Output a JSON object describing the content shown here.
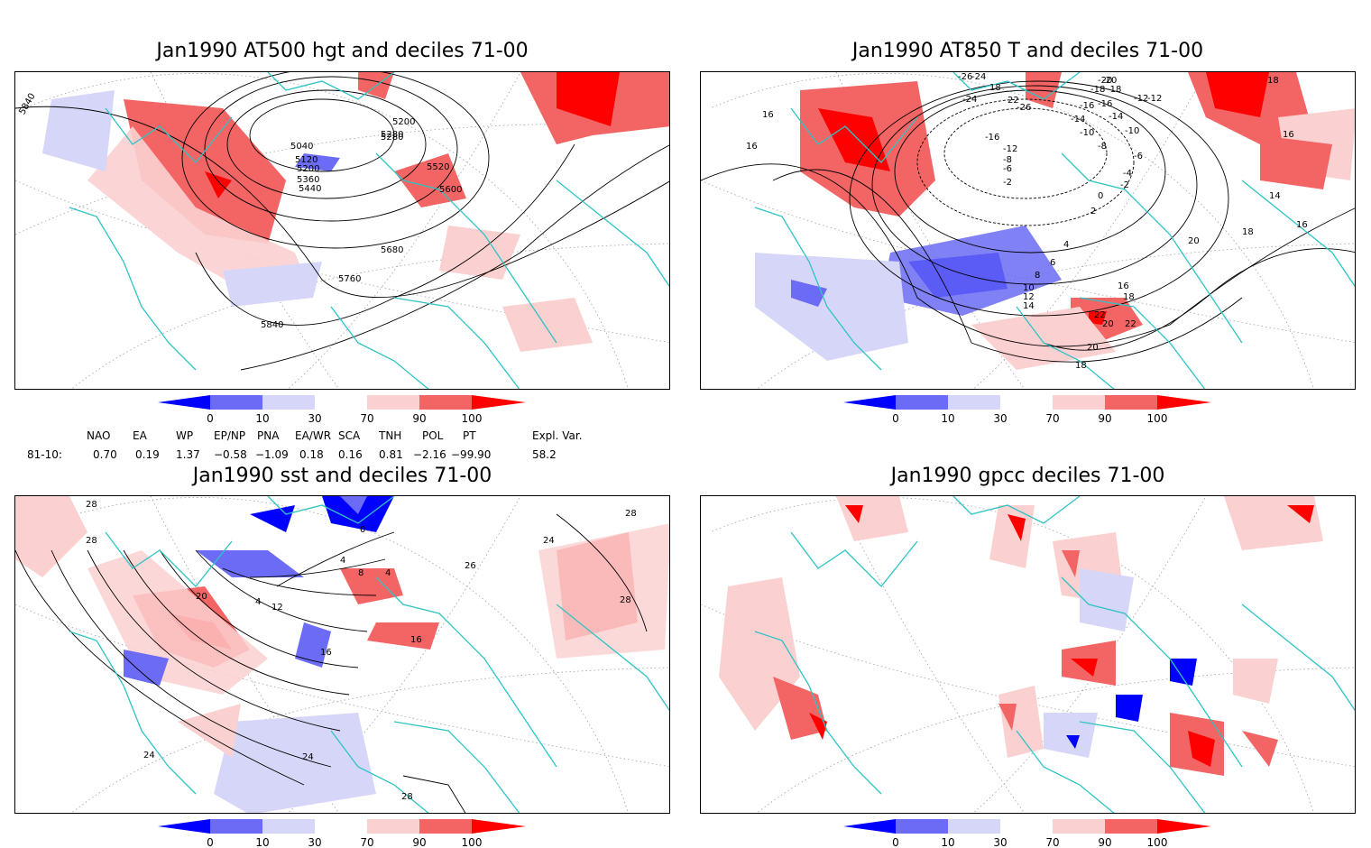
{
  "panels": [
    {
      "title": "Jan1990 AT500 hgt and deciles 71-00",
      "contour_labels": [
        "5040",
        "5120",
        "5200",
        "5280",
        "5360",
        "5440",
        "5520",
        "5600",
        "5680",
        "5760",
        "5840",
        "5200",
        "5280",
        "5840"
      ]
    },
    {
      "title": "Jan1990 AT850 T and deciles 71-00",
      "contour_labels": [
        "-26",
        "-24",
        "-20",
        "-18",
        "-16",
        "-14",
        "-12",
        "-10",
        "-8",
        "-6",
        "-4",
        "-2",
        "0",
        "2",
        "4",
        "6",
        "8",
        "10",
        "12",
        "14",
        "16",
        "18",
        "20",
        "22",
        "16",
        "16",
        "18",
        "14",
        "16",
        "18",
        "20",
        "18",
        "20",
        "22",
        "16",
        "18",
        "22",
        "-16",
        "-12",
        "-6",
        "-2",
        "-8",
        "-10",
        "-12",
        "-14",
        "-16",
        "-18",
        "-20",
        "-24",
        "-26"
      ]
    },
    {
      "title": "Jan1990 sst and deciles 71-00",
      "contour_labels": [
        "28",
        "28",
        "24",
        "20",
        "16",
        "12",
        "4",
        "8",
        "4",
        "4",
        "0",
        "16",
        "24",
        "28",
        "28",
        "24",
        "28",
        "26"
      ]
    },
    {
      "title": "Jan1990 gpcc deciles 71-00",
      "contour_labels": []
    }
  ],
  "colorbar": {
    "ticks": [
      "0",
      "10",
      "30",
      "70",
      "90",
      "100"
    ],
    "colors": [
      "#0000ff",
      "#6b6bf5",
      "#d6d6f8",
      "#ffffff",
      "#fbd0d0",
      "#f36464",
      "#ff0000"
    ]
  },
  "indices": {
    "row_label": "81-10:",
    "headers": [
      "NAO",
      "EA",
      "WP",
      "EP/NP",
      "PNA",
      "EA/WR",
      "SCA",
      "TNH",
      "POL",
      "PT",
      "Expl. Var."
    ],
    "values": [
      "0.70",
      "0.19",
      "1.37",
      "−0.58",
      "−1.09",
      "0.18",
      "0.16",
      "0.81",
      "−2.16",
      "−99.90",
      "58.2"
    ]
  },
  "map_colors": {
    "coast": "#2ec4c4",
    "grid": "#a0a0a0",
    "contour": "#000000"
  }
}
